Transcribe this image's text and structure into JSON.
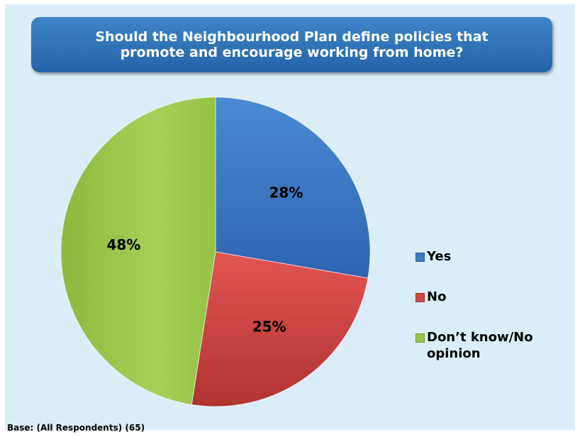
{
  "chart_data": {
    "type": "pie",
    "title": "Should the Neighbourhood Plan define policies that promote and encourage working from home?",
    "categories": [
      "Yes",
      "No",
      "Don’t know/No opinion"
    ],
    "values": [
      28,
      25,
      48
    ],
    "value_labels": [
      "28%",
      "25%",
      "48%"
    ],
    "colors": [
      "#3c7ac6",
      "#d14543",
      "#9cc54b"
    ],
    "legend_position": "right",
    "note": "Base: (All Respondents) (65)"
  }
}
